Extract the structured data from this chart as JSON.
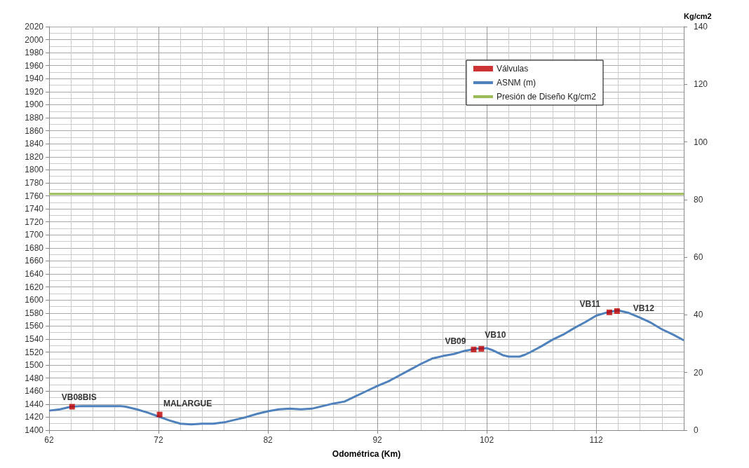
{
  "chart_data": {
    "type": "line",
    "xlabel": "Odométrica (Km)",
    "y2label": "Kg/cm2",
    "xlim": [
      62,
      120
    ],
    "xticks": [
      62,
      72,
      82,
      92,
      102,
      112
    ],
    "ylim": [
      1400,
      2020
    ],
    "yticks": [
      1400,
      1420,
      1440,
      1460,
      1480,
      1500,
      1520,
      1540,
      1560,
      1580,
      1600,
      1620,
      1640,
      1660,
      1680,
      1700,
      1720,
      1740,
      1760,
      1780,
      1800,
      1820,
      1840,
      1860,
      1880,
      1900,
      1920,
      1940,
      1960,
      1980,
      2000,
      2020
    ],
    "y2lim": [
      0,
      140
    ],
    "y2ticks": [
      0,
      20,
      40,
      60,
      80,
      100,
      120,
      140
    ],
    "grid": true,
    "legend": "top right",
    "series": [
      {
        "name": "Válvulas",
        "type": "scatter",
        "marker": "square",
        "color": "#c00000",
        "x": [
          64.1,
          72.1,
          100.8,
          101.5,
          113.2,
          113.9
        ],
        "values": [
          1436,
          1424,
          1524,
          1525,
          1581,
          1583
        ]
      },
      {
        "name": "ASNM (m)",
        "marker": "none",
        "color": "#4f81bd",
        "x": [
          62,
          63,
          64,
          65,
          66.5,
          68.5,
          69,
          70,
          71,
          72,
          73,
          74,
          75,
          76,
          77,
          78,
          79,
          80,
          81,
          82,
          83,
          84,
          85,
          86,
          87,
          88,
          89,
          90,
          91,
          92,
          93,
          94,
          95,
          96,
          97,
          98,
          99,
          100,
          101,
          102,
          102.5,
          103,
          103.5,
          104,
          105,
          105.5,
          106,
          107,
          108,
          109,
          110,
          111,
          112,
          113,
          114,
          115,
          116,
          117,
          118,
          119,
          120
        ],
        "values": [
          1430,
          1432,
          1436,
          1437,
          1437,
          1437,
          1436,
          1432,
          1427,
          1421,
          1415,
          1410,
          1409,
          1410,
          1410,
          1412,
          1416,
          1420,
          1425,
          1429,
          1432,
          1433,
          1432,
          1433,
          1437,
          1441,
          1444,
          1452,
          1460,
          1468,
          1475,
          1484,
          1493,
          1502,
          1510,
          1514,
          1517,
          1522,
          1525,
          1526,
          1523,
          1519,
          1515,
          1513,
          1513,
          1516,
          1520,
          1529,
          1539,
          1547,
          1557,
          1566,
          1576,
          1581,
          1584,
          1580,
          1573,
          1565,
          1555,
          1547,
          1538
        ]
      },
      {
        "name": "Presión de Diseño Kg/cm2",
        "marker": "none",
        "axis": "y2",
        "color": "#9bbb59",
        "x": [
          62,
          120
        ],
        "values": [
          82,
          82
        ]
      }
    ],
    "annotations": [
      {
        "text": "VB08BIS",
        "x": 64.1,
        "y": 1435.5
      },
      {
        "text": "MALARGUE",
        "x": 72.1,
        "y": 1424
      },
      {
        "text": "VB09",
        "x": 100.8,
        "y": 1523.8
      },
      {
        "text": "VB10",
        "x": 101.5,
        "y": 1525
      },
      {
        "text": "VB11",
        "x": 113.2,
        "y": 1581
      },
      {
        "text": "VB12",
        "x": 113.9,
        "y": 1583
      }
    ]
  }
}
